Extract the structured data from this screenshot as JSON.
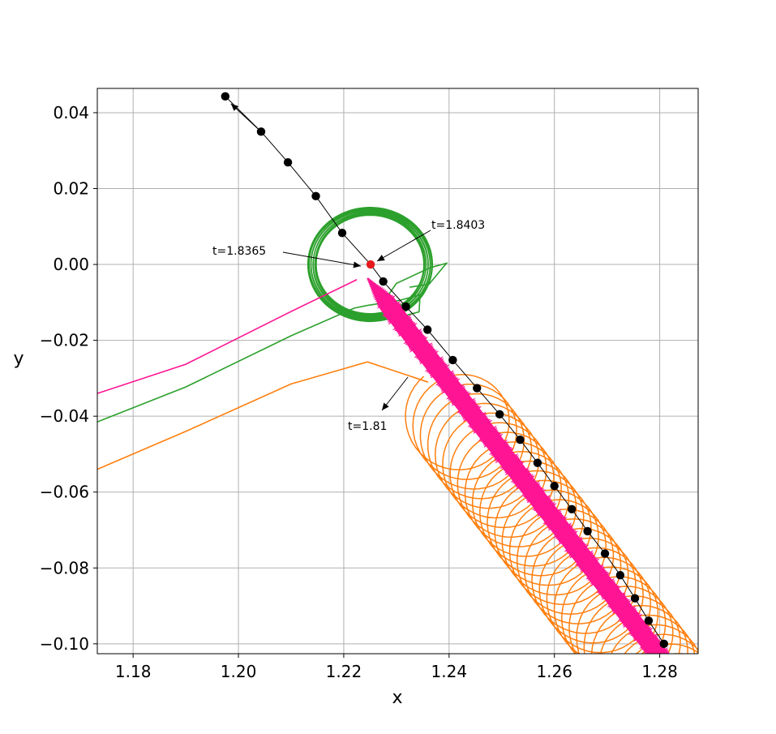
{
  "chart_data": {
    "type": "line",
    "xlabel": "x",
    "ylabel": "y",
    "xlim": [
      1.1732,
      1.2873
    ],
    "ylim": [
      -0.1026,
      0.0464
    ],
    "grid": true,
    "xticks": [
      {
        "value": 1.18,
        "label": "1.18"
      },
      {
        "value": 1.2,
        "label": "1.20"
      },
      {
        "value": 1.22,
        "label": "1.22"
      },
      {
        "value": 1.24,
        "label": "1.24"
      },
      {
        "value": 1.26,
        "label": "1.26"
      },
      {
        "value": 1.28,
        "label": "1.28"
      }
    ],
    "yticks": [
      {
        "value": 0.04,
        "label": "0.04"
      },
      {
        "value": 0.02,
        "label": "0.02"
      },
      {
        "value": 0.0,
        "label": "0.00"
      },
      {
        "value": -0.02,
        "label": "−0.02"
      },
      {
        "value": -0.04,
        "label": "−0.04"
      },
      {
        "value": -0.06,
        "label": "−0.06"
      },
      {
        "value": -0.08,
        "label": "−0.08"
      },
      {
        "value": -0.1,
        "label": "−0.10"
      }
    ],
    "colors": {
      "pink": "#ff1493",
      "green": "#2ca02c",
      "orange": "#ff7f0e",
      "black": "#000000",
      "red": "#e41a1c"
    },
    "series": [
      {
        "color": "pink",
        "incoming": [
          [
            1.1732,
            -0.034
          ],
          [
            1.19,
            -0.0263
          ],
          [
            1.21,
            -0.0124
          ],
          [
            1.2225,
            -0.004
          ]
        ],
        "peak": [
          1.2245,
          -0.0036
        ],
        "loop": {
          "amplitude": 0.0014,
          "radius": 0.0013,
          "from_t": 0.0,
          "to_t": 1.0,
          "step": 0.0003
        }
      },
      {
        "color": "green",
        "incoming": [
          [
            1.1732,
            -0.0415
          ],
          [
            1.19,
            -0.0323
          ],
          [
            1.21,
            -0.0188
          ],
          [
            1.222,
            -0.0115
          ],
          [
            1.2245,
            -0.0108
          ]
        ],
        "loop": {
          "center": [
            1.225,
            0.0
          ],
          "radius": 0.0105
        }
      },
      {
        "color": "orange",
        "incoming": [
          [
            1.1732,
            -0.054
          ],
          [
            1.19,
            -0.044
          ],
          [
            1.21,
            -0.0315
          ],
          [
            1.2245,
            -0.0257
          ],
          [
            1.236,
            -0.031
          ]
        ],
        "loop": {
          "amplitude": 0.0095,
          "step": 0.0011
        }
      }
    ],
    "black_path": {
      "x": [
        1.1975,
        1.2043,
        1.2094,
        1.2147,
        1.2197,
        1.2251,
        1.2275,
        1.2318,
        1.2359,
        1.2407,
        1.2453,
        1.2496,
        1.2535,
        1.2568,
        1.26,
        1.2633,
        1.2663,
        1.2696,
        1.2725,
        1.2753,
        1.2779,
        1.2808
      ],
      "y": [
        0.0443,
        0.035,
        0.0269,
        0.018,
        0.0083,
        0.0,
        -0.0045,
        -0.0111,
        -0.0172,
        -0.0252,
        -0.0326,
        -0.0395,
        -0.0462,
        -0.0523,
        -0.0584,
        -0.0645,
        -0.0703,
        -0.0762,
        -0.0819,
        -0.088,
        -0.0939,
        -0.1
      ],
      "highlight_point": [
        1.2251,
        0.0
      ]
    },
    "annotations": [
      {
        "text": "t=1.8403",
        "text_at": [
          1.2392,
          0.0105
        ],
        "arrow_to": [
          1.2262,
          0.001
        ]
      },
      {
        "text": "t=1.8365",
        "text_at": [
          1.212,
          0.0035
        ],
        "arrow_to": [
          1.218,
          0.003
        ]
      },
      {
        "text": "t=1.81",
        "text_at": [
          1.2235,
          -0.0395
        ],
        "arrow_to": [
          1.2252,
          -0.039
        ]
      }
    ]
  }
}
